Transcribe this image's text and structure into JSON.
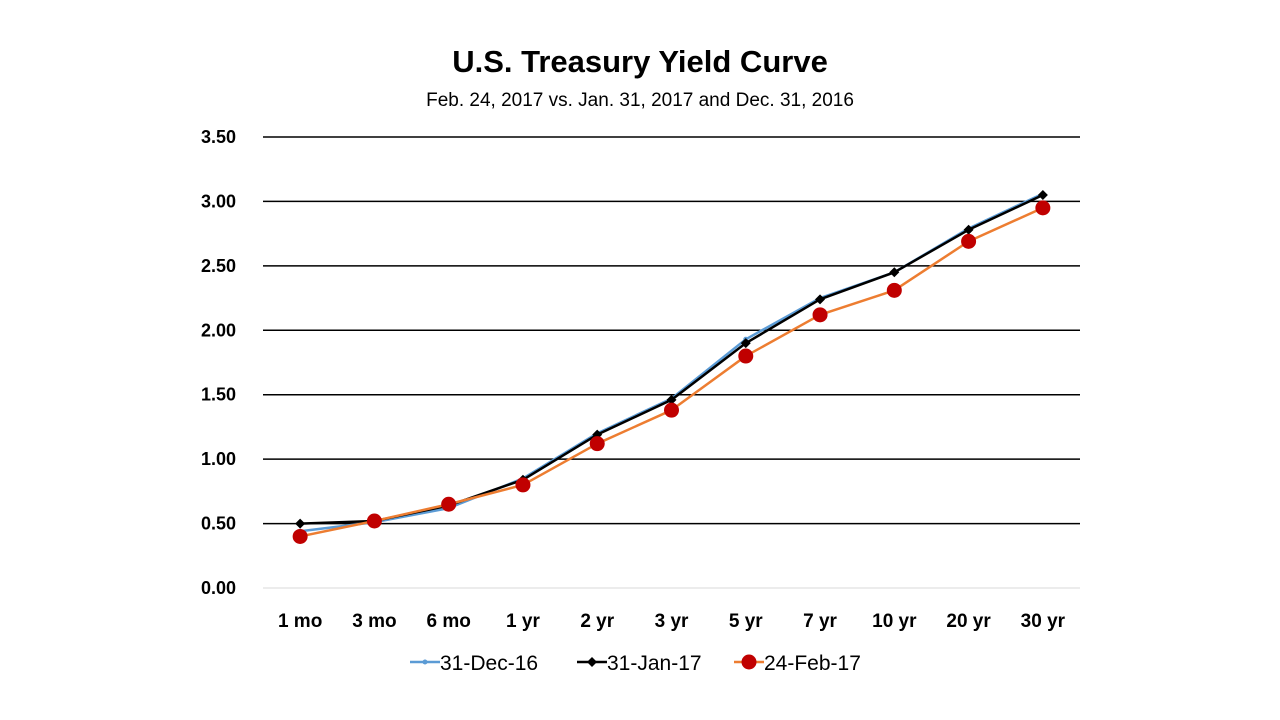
{
  "chart_data": {
    "type": "line",
    "title": "U.S. Treasury Yield Curve",
    "subtitle": "Feb. 24, 2017 vs. Jan. 31, 2017 and Dec. 31, 2016",
    "xlabel": "",
    "ylabel": "",
    "categories": [
      "1 mo",
      "3 mo",
      "6 mo",
      "1 yr",
      "2 yr",
      "3 yr",
      "5 yr",
      "7 yr",
      "10 yr",
      "20 yr",
      "30 yr"
    ],
    "ylim": [
      0,
      3.5
    ],
    "yticks": [
      "0.00",
      "0.50",
      "1.00",
      "1.50",
      "2.00",
      "2.50",
      "3.00",
      "3.50"
    ],
    "grid": true,
    "legend_position": "bottom",
    "series": [
      {
        "name": "31-Dec-16",
        "color": "#5b9bd5",
        "marker": "small-circle",
        "values": [
          0.44,
          0.51,
          0.62,
          0.85,
          1.2,
          1.47,
          1.93,
          2.25,
          2.45,
          2.79,
          3.06
        ]
      },
      {
        "name": "31-Jan-17",
        "color": "#000000",
        "marker": "diamond",
        "values": [
          0.5,
          0.52,
          0.64,
          0.84,
          1.19,
          1.46,
          1.9,
          2.24,
          2.45,
          2.78,
          3.05
        ]
      },
      {
        "name": "24-Feb-17",
        "color": "#ed7d31",
        "marker": "large-circle",
        "marker_color": "#c00000",
        "values": [
          0.4,
          0.52,
          0.65,
          0.8,
          1.12,
          1.38,
          1.8,
          2.12,
          2.31,
          2.69,
          2.95
        ]
      }
    ]
  }
}
